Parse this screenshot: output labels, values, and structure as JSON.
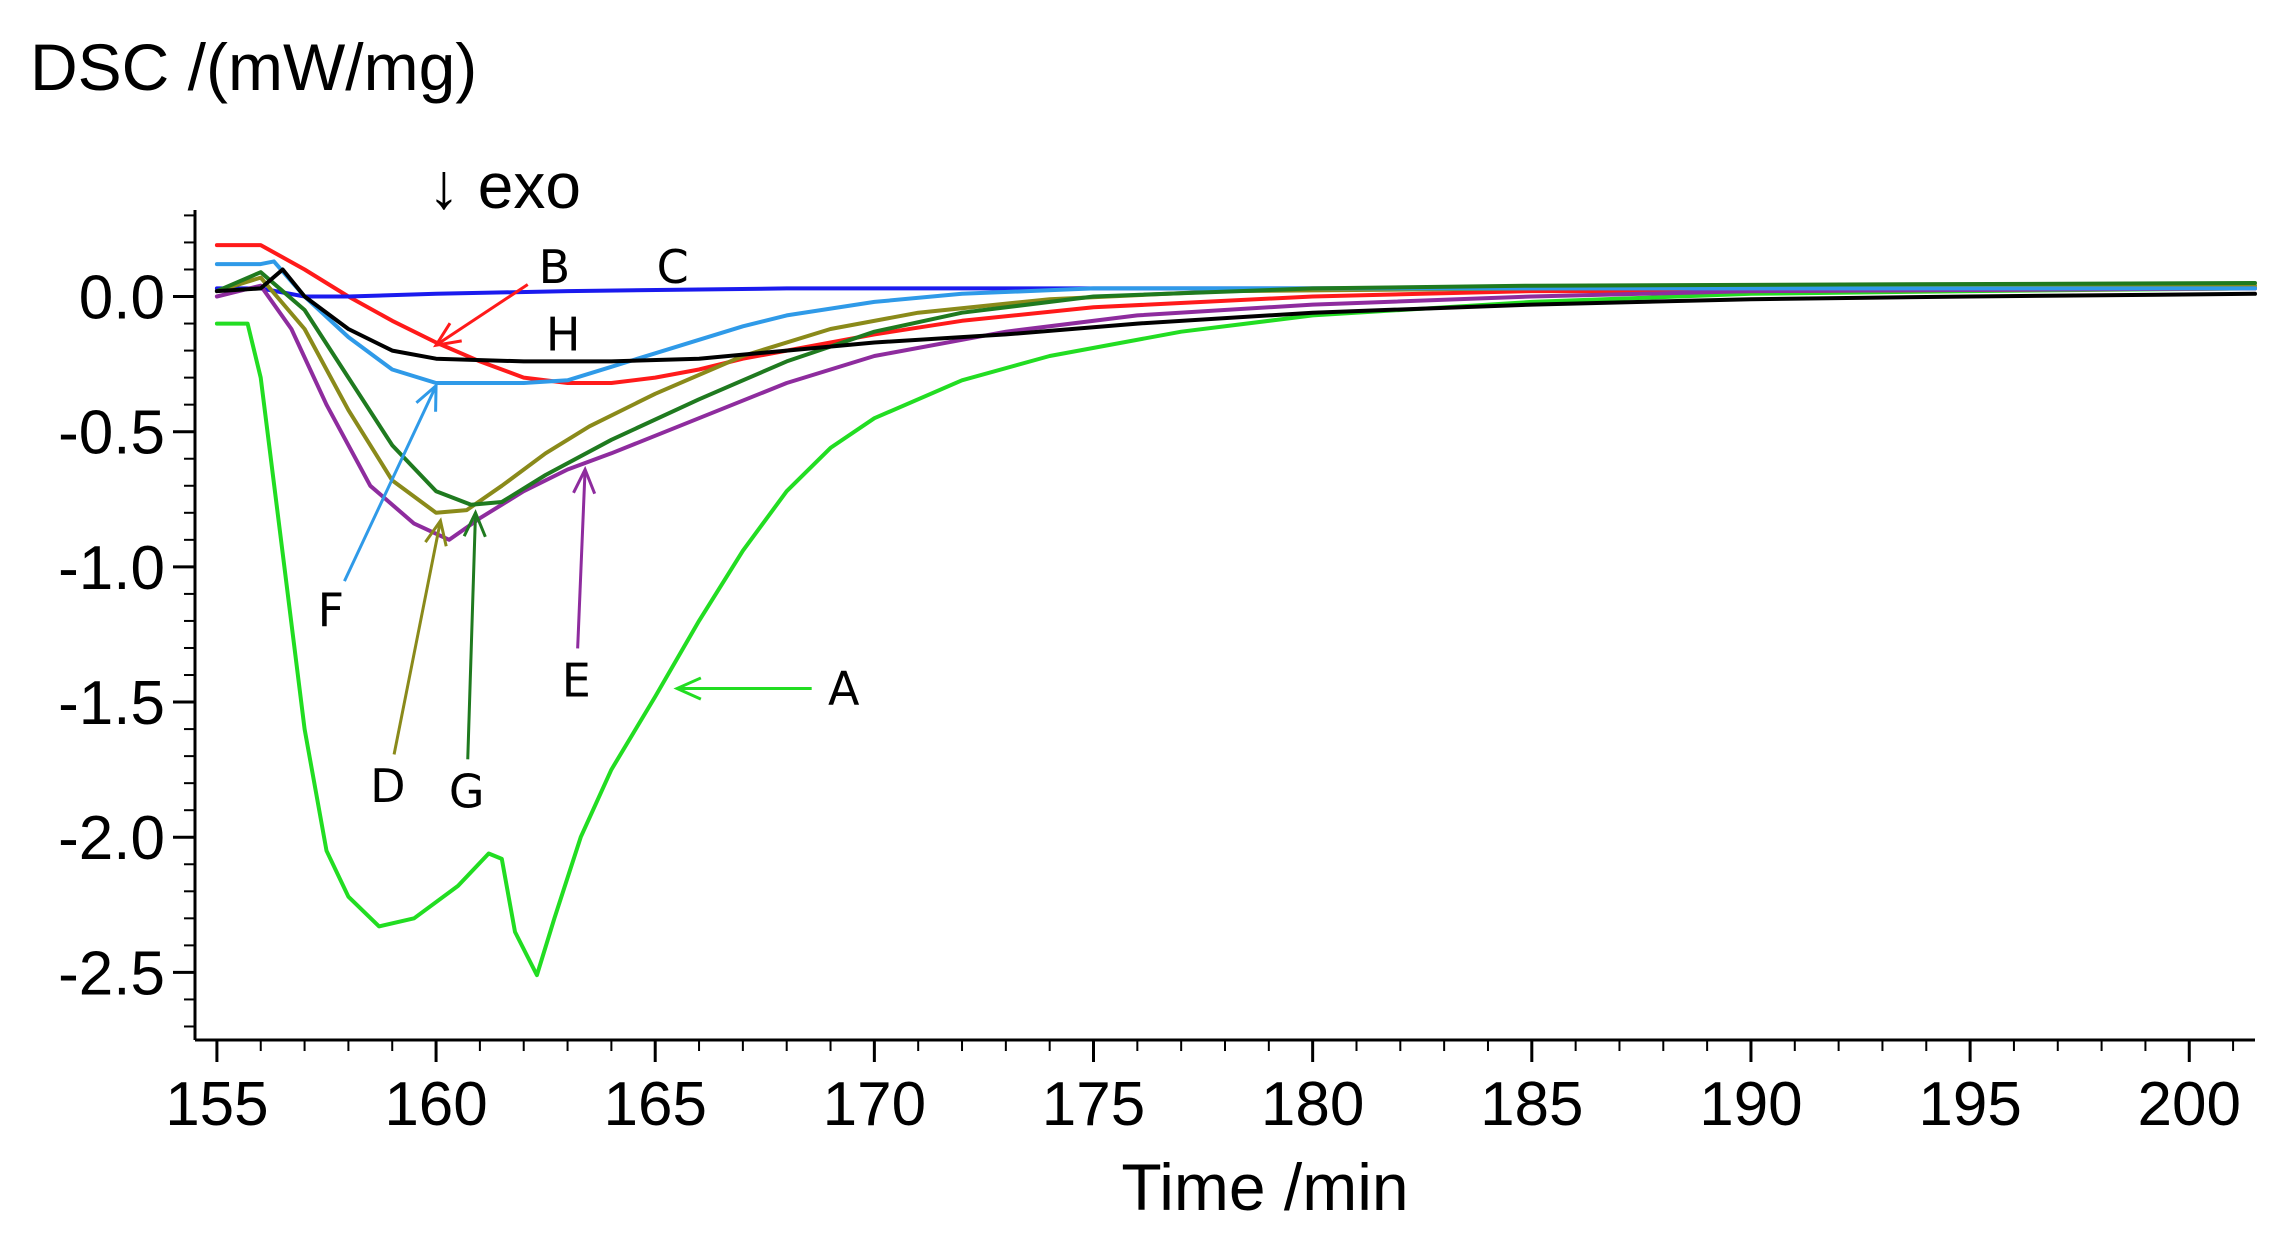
{
  "chart_data": {
    "type": "line",
    "title": "",
    "xlabel": "Time /min",
    "ylabel": "DSC /(mW/mg)",
    "annotation": "↓ exo",
    "xlim": [
      154.5,
      201.5
    ],
    "ylim": [
      -2.75,
      0.32
    ],
    "x_ticks": [
      "155",
      "160",
      "165",
      "170",
      "175",
      "180",
      "185",
      "190",
      "195",
      "200"
    ],
    "y_ticks": [
      "0.0",
      "-0.5",
      "-1.0",
      "-1.5",
      "-2.0",
      "-2.5"
    ],
    "grid": false,
    "colors": {
      "A": "#22dd22",
      "B": "#ff1a1a",
      "C": "#1a1aee",
      "D": "#8a8a1a",
      "E": "#8e2c9e",
      "F": "#2f9ae8",
      "G": "#1f7a1f",
      "H": "#000000"
    },
    "series": [
      {
        "name": "A",
        "points": [
          [
            155,
            -0.1
          ],
          [
            155.7,
            -0.1
          ],
          [
            156,
            -0.3
          ],
          [
            156.5,
            -0.95
          ],
          [
            157,
            -1.6
          ],
          [
            157.5,
            -2.05
          ],
          [
            158,
            -2.22
          ],
          [
            158.7,
            -2.33
          ],
          [
            159.5,
            -2.3
          ],
          [
            160.5,
            -2.18
          ],
          [
            161.2,
            -2.06
          ],
          [
            161.5,
            -2.08
          ],
          [
            161.8,
            -2.35
          ],
          [
            162.3,
            -2.51
          ],
          [
            162.7,
            -2.3
          ],
          [
            163.3,
            -2.0
          ],
          [
            164,
            -1.75
          ],
          [
            165,
            -1.48
          ],
          [
            166,
            -1.2
          ],
          [
            167,
            -0.94
          ],
          [
            168,
            -0.72
          ],
          [
            169,
            -0.56
          ],
          [
            170,
            -0.45
          ],
          [
            172,
            -0.31
          ],
          [
            174,
            -0.22
          ],
          [
            177,
            -0.13
          ],
          [
            180,
            -0.07
          ],
          [
            185,
            -0.02
          ],
          [
            190,
            0.01
          ],
          [
            195,
            0.02
          ],
          [
            201.5,
            0.03
          ]
        ]
      },
      {
        "name": "B",
        "points": [
          [
            155,
            0.19
          ],
          [
            156,
            0.19
          ],
          [
            157,
            0.1
          ],
          [
            158,
            0.0
          ],
          [
            159,
            -0.09
          ],
          [
            160,
            -0.17
          ],
          [
            161,
            -0.24
          ],
          [
            162,
            -0.3
          ],
          [
            163,
            -0.32
          ],
          [
            164,
            -0.32
          ],
          [
            165,
            -0.3
          ],
          [
            166,
            -0.27
          ],
          [
            167,
            -0.23
          ],
          [
            168,
            -0.2
          ],
          [
            170,
            -0.14
          ],
          [
            172,
            -0.09
          ],
          [
            175,
            -0.04
          ],
          [
            180,
            0.0
          ],
          [
            185,
            0.02
          ],
          [
            190,
            0.02
          ],
          [
            201.5,
            0.03
          ]
        ]
      },
      {
        "name": "C",
        "points": [
          [
            155,
            0.03
          ],
          [
            156,
            0.03
          ],
          [
            157,
            0.0
          ],
          [
            158,
            0.0
          ],
          [
            160,
            0.01
          ],
          [
            163,
            0.02
          ],
          [
            168,
            0.03
          ],
          [
            175,
            0.03
          ],
          [
            185,
            0.03
          ],
          [
            201.5,
            0.03
          ]
        ]
      },
      {
        "name": "D",
        "points": [
          [
            155,
            0.02
          ],
          [
            156,
            0.07
          ],
          [
            157,
            -0.12
          ],
          [
            158,
            -0.42
          ],
          [
            159,
            -0.68
          ],
          [
            160,
            -0.8
          ],
          [
            160.7,
            -0.79
          ],
          [
            161.5,
            -0.7
          ],
          [
            162.5,
            -0.58
          ],
          [
            163.5,
            -0.48
          ],
          [
            165,
            -0.36
          ],
          [
            167,
            -0.22
          ],
          [
            169,
            -0.12
          ],
          [
            171,
            -0.06
          ],
          [
            174,
            -0.01
          ],
          [
            178,
            0.02
          ],
          [
            185,
            0.03
          ],
          [
            201.5,
            0.04
          ]
        ]
      },
      {
        "name": "E",
        "points": [
          [
            155,
            0.0
          ],
          [
            156,
            0.04
          ],
          [
            156.7,
            -0.12
          ],
          [
            157.5,
            -0.4
          ],
          [
            158.5,
            -0.7
          ],
          [
            159.5,
            -0.84
          ],
          [
            160.3,
            -0.9
          ],
          [
            161,
            -0.82
          ],
          [
            162,
            -0.72
          ],
          [
            163,
            -0.64
          ],
          [
            164,
            -0.58
          ],
          [
            166,
            -0.45
          ],
          [
            168,
            -0.32
          ],
          [
            170,
            -0.22
          ],
          [
            173,
            -0.13
          ],
          [
            176,
            -0.07
          ],
          [
            180,
            -0.03
          ],
          [
            185,
            0.0
          ],
          [
            190,
            0.02
          ],
          [
            201.5,
            0.03
          ]
        ]
      },
      {
        "name": "F",
        "points": [
          [
            155,
            0.12
          ],
          [
            156,
            0.12
          ],
          [
            156.3,
            0.13
          ],
          [
            157,
            0.0
          ],
          [
            158,
            -0.15
          ],
          [
            159,
            -0.27
          ],
          [
            160,
            -0.32
          ],
          [
            162,
            -0.32
          ],
          [
            163,
            -0.31
          ],
          [
            164,
            -0.26
          ],
          [
            165,
            -0.21
          ],
          [
            166,
            -0.16
          ],
          [
            167,
            -0.11
          ],
          [
            168,
            -0.07
          ],
          [
            170,
            -0.02
          ],
          [
            172,
            0.01
          ],
          [
            175,
            0.03
          ],
          [
            185,
            0.03
          ],
          [
            201.5,
            0.03
          ]
        ]
      },
      {
        "name": "G",
        "points": [
          [
            155,
            0.02
          ],
          [
            156,
            0.09
          ],
          [
            157,
            -0.05
          ],
          [
            158,
            -0.3
          ],
          [
            159,
            -0.55
          ],
          [
            160,
            -0.72
          ],
          [
            160.8,
            -0.77
          ],
          [
            161.5,
            -0.76
          ],
          [
            162.5,
            -0.66
          ],
          [
            164,
            -0.53
          ],
          [
            166,
            -0.38
          ],
          [
            168,
            -0.24
          ],
          [
            170,
            -0.13
          ],
          [
            172,
            -0.06
          ],
          [
            175,
            0.0
          ],
          [
            180,
            0.03
          ],
          [
            185,
            0.04
          ],
          [
            201.5,
            0.05
          ]
        ]
      },
      {
        "name": "H",
        "points": [
          [
            155,
            0.02
          ],
          [
            156,
            0.03
          ],
          [
            156.5,
            0.1
          ],
          [
            157,
            0.0
          ],
          [
            158,
            -0.12
          ],
          [
            159,
            -0.2
          ],
          [
            160,
            -0.23
          ],
          [
            162,
            -0.24
          ],
          [
            164,
            -0.24
          ],
          [
            166,
            -0.23
          ],
          [
            168,
            -0.2
          ],
          [
            170,
            -0.17
          ],
          [
            173,
            -0.14
          ],
          [
            176,
            -0.1
          ],
          [
            180,
            -0.06
          ],
          [
            185,
            -0.03
          ],
          [
            190,
            -0.01
          ],
          [
            195,
            0.0
          ],
          [
            201.5,
            0.01
          ]
        ]
      }
    ],
    "labels": [
      {
        "text": "A",
        "x": 169.3,
        "y": -1.45,
        "arrow_to": [
          165.5,
          -1.45
        ]
      },
      {
        "text": "B",
        "x": 162.7,
        "y": 0.11,
        "arrow_to": [
          160,
          -0.18
        ]
      },
      {
        "text": "C",
        "x": 165.4,
        "y": 0.11
      },
      {
        "text": "D",
        "x": 158.9,
        "y": -1.81,
        "arrow_to": [
          160.1,
          -0.83
        ]
      },
      {
        "text": "E",
        "x": 163.2,
        "y": -1.42,
        "arrow_to": [
          163.4,
          -0.64
        ]
      },
      {
        "text": "F",
        "x": 157.6,
        "y": -1.16,
        "arrow_to": [
          160,
          -0.33
        ]
      },
      {
        "text": "G",
        "x": 160.7,
        "y": -1.83,
        "arrow_to": [
          160.9,
          -0.8
        ]
      },
      {
        "text": "H",
        "x": 162.9,
        "y": -0.14
      }
    ]
  }
}
